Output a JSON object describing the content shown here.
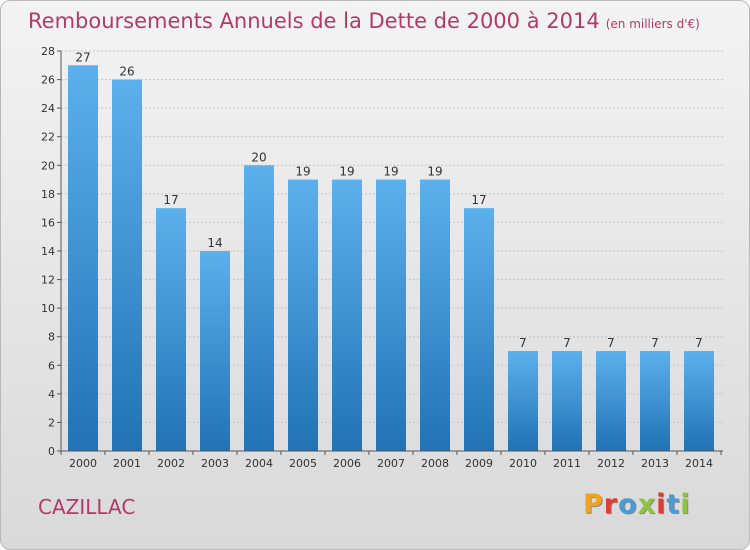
{
  "title": "Remboursements Annuels de la Dette de 2000 à 2014",
  "subtitle": "(en milliers d'€)",
  "place": "CAZILLAC",
  "logo": {
    "text": "Proxiti",
    "colors": [
      "#f0a31b",
      "#e03c34",
      "#4a9ad4",
      "#8cc63e",
      "#e03c34",
      "#4a9ad4",
      "#8cc63e"
    ]
  },
  "colors": {
    "bar_top": "#5cb0ec",
    "bar_bottom": "#2272b4",
    "title": "#b23a68",
    "axis": "#555555",
    "grid": "#c6c6c6",
    "label": "#333333"
  },
  "chart_data": {
    "type": "bar",
    "categories": [
      "2000",
      "2001",
      "2002",
      "2003",
      "2004",
      "2005",
      "2006",
      "2007",
      "2008",
      "2009",
      "2010",
      "2011",
      "2012",
      "2013",
      "2014"
    ],
    "values": [
      27,
      26,
      17,
      14,
      20,
      19,
      19,
      19,
      19,
      17,
      7,
      7,
      7,
      7,
      7
    ],
    "ylim": [
      0,
      28
    ],
    "yticks": [
      0,
      2,
      4,
      6,
      8,
      10,
      12,
      14,
      16,
      18,
      20,
      22,
      24,
      26,
      28
    ],
    "grid": true,
    "data_labels": true
  }
}
